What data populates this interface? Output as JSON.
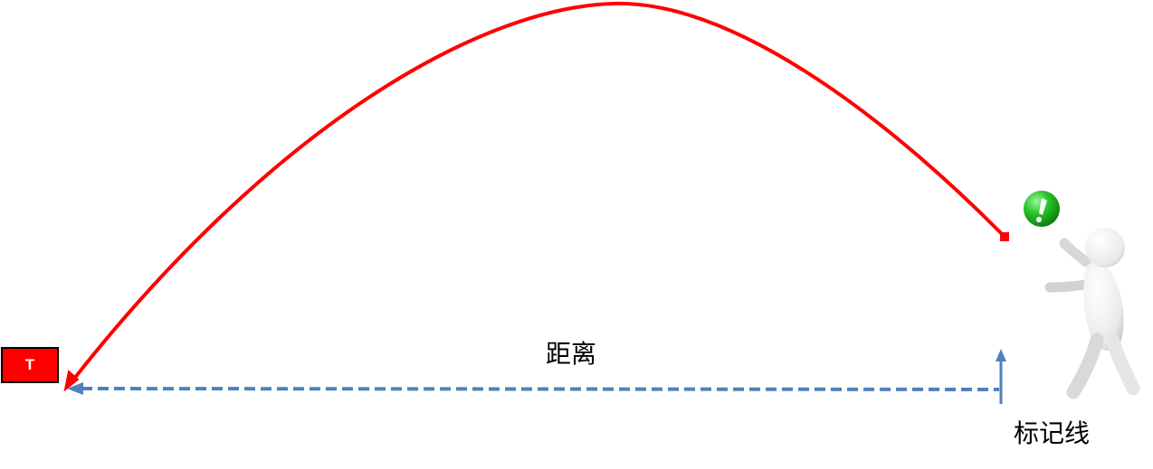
{
  "target": {
    "label": "T",
    "fill_color": "#ff0000",
    "border_color": "#000000"
  },
  "labels": {
    "distance": "距离",
    "mark_line": "标记线"
  },
  "colors": {
    "trajectory": "#ff0000",
    "distance_arrow": "#4f81bd",
    "ball": "#22b022",
    "figure": "#f2f2f2"
  },
  "icons": {
    "ball": "green-exclamation-ball-icon",
    "thrower": "white-3d-person-throwing-icon"
  }
}
